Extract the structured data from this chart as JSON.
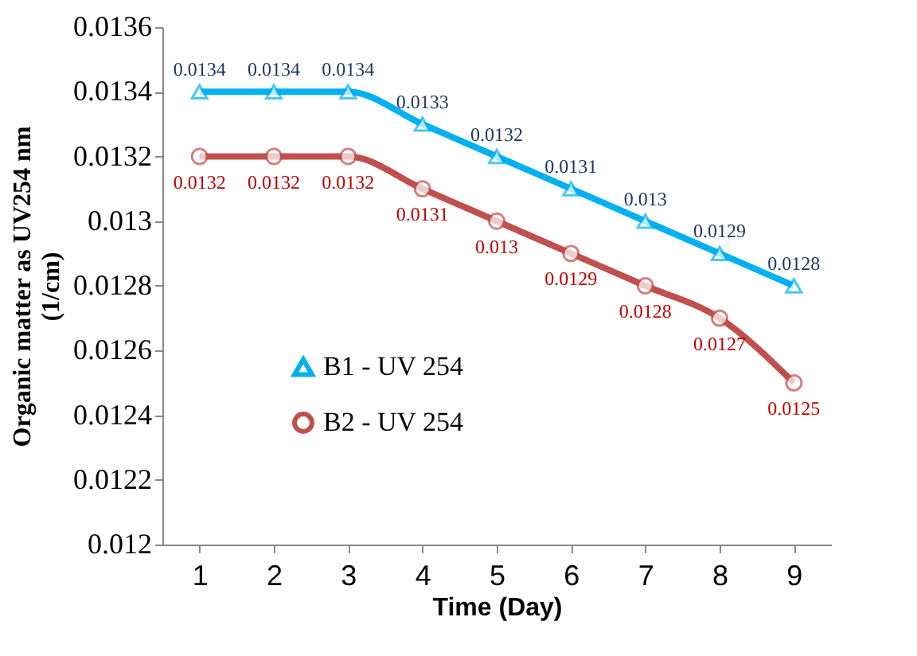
{
  "chart_data": {
    "type": "line",
    "xlabel": "Time (Day)",
    "ylabel": "Organic matter as UV254 nm (1/cm)",
    "categories": [
      "1",
      "2",
      "3",
      "4",
      "5",
      "6",
      "7",
      "8",
      "9"
    ],
    "series": [
      {
        "name": "B1  - UV 254",
        "color": "#00b0f0",
        "marker": "triangle",
        "values": [
          0.0134,
          0.0134,
          0.0134,
          0.0133,
          0.0132,
          0.0131,
          0.013,
          0.0129,
          0.0128
        ]
      },
      {
        "name": "B2  - UV 254",
        "color": "#c0504d",
        "marker": "circle",
        "values": [
          0.0132,
          0.0132,
          0.0132,
          0.0131,
          0.013,
          0.0129,
          0.0128,
          0.0127,
          0.0125
        ]
      }
    ],
    "ylim": [
      0.012,
      0.0136
    ],
    "yticks": [
      0.012,
      0.0122,
      0.0124,
      0.0126,
      0.0128,
      0.013,
      0.0132,
      0.0134,
      0.0136
    ],
    "grid": false,
    "legend": "left",
    "data_labels": true,
    "line_style": "solid"
  }
}
